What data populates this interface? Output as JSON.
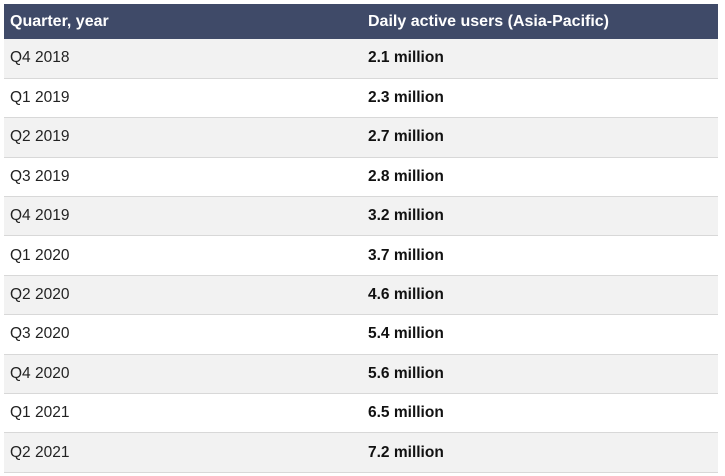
{
  "colors": {
    "header_bg": "#3f4a68",
    "header_text": "#ffffff",
    "row_odd": "#f2f2f2",
    "row_even": "#ffffff"
  },
  "chart_data": {
    "type": "table",
    "columns": [
      "Quarter, year",
      "Daily active users (Asia-Pacific)"
    ],
    "rows": [
      [
        "Q4 2018",
        "2.1 million"
      ],
      [
        "Q1 2019",
        "2.3 million"
      ],
      [
        "Q2 2019",
        "2.7 million"
      ],
      [
        "Q3 2019",
        "2.8 million"
      ],
      [
        "Q4 2019",
        "3.2 million"
      ],
      [
        "Q1 2020",
        "3.7 million"
      ],
      [
        "Q2 2020",
        "4.6 million"
      ],
      [
        "Q3 2020",
        "5.4 million"
      ],
      [
        "Q4 2020",
        "5.6 million"
      ],
      [
        "Q1 2021",
        "6.5 million"
      ],
      [
        "Q2 2021",
        "7.2 million"
      ]
    ]
  }
}
